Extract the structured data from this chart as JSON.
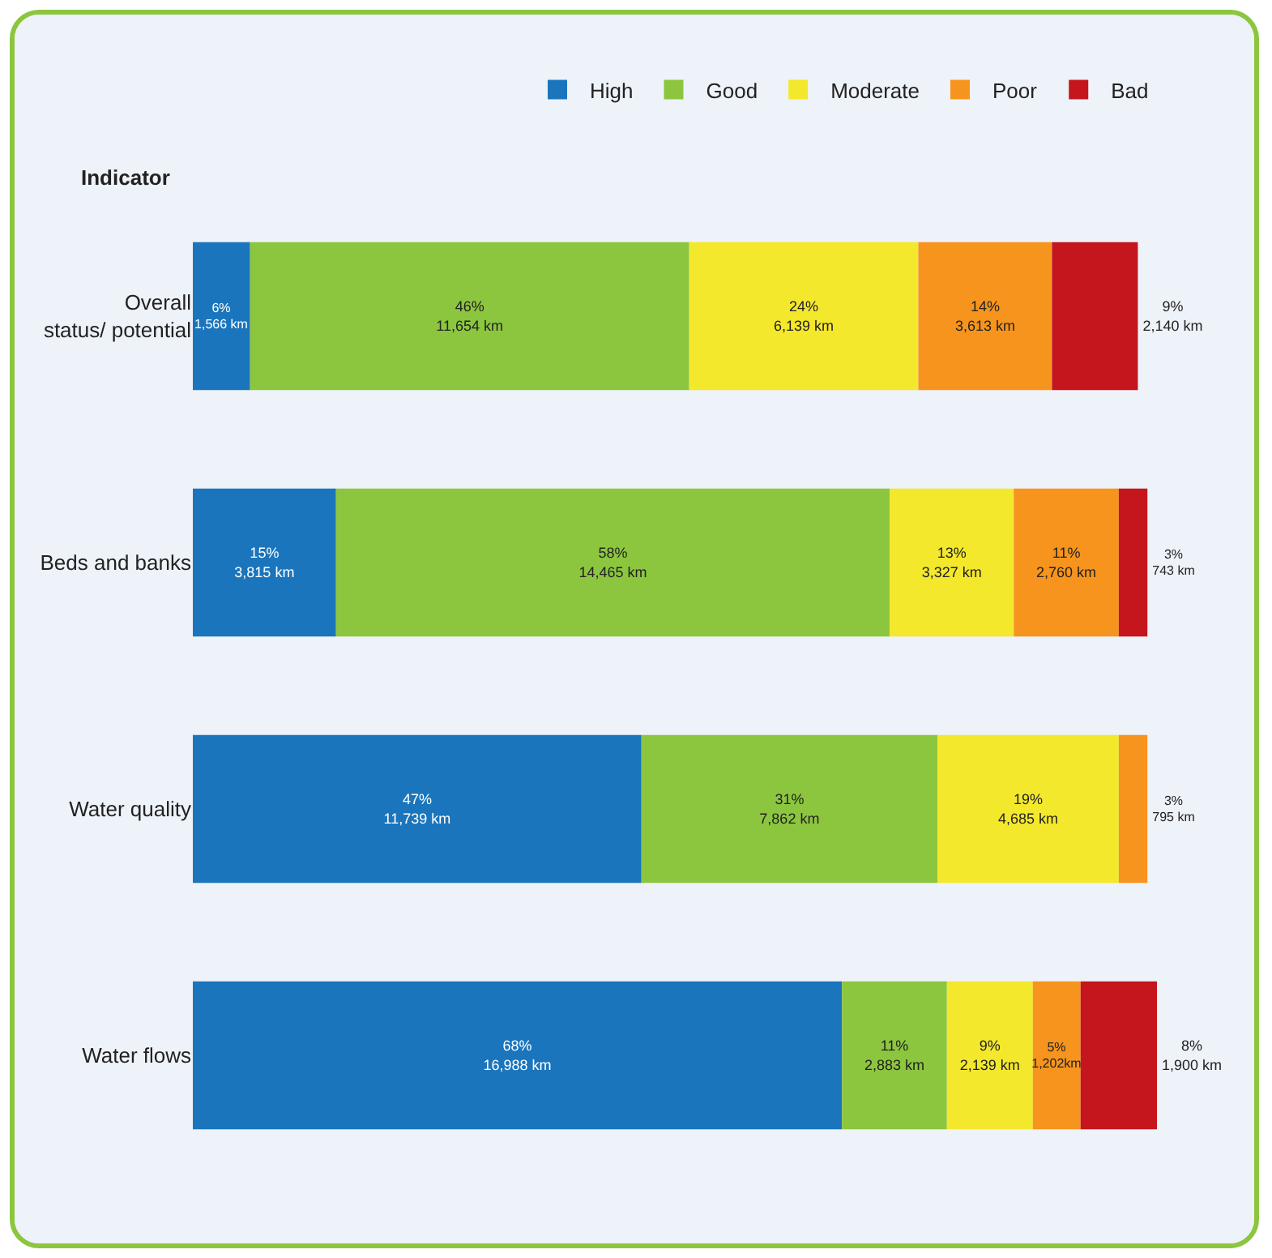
{
  "chart_data": {
    "type": "bar",
    "orientation": "horizontal",
    "stacked": true,
    "ylabel": "Indicator",
    "legend": "top",
    "categories": [
      "Overall status/ potential",
      "Beds and banks",
      "Water quality",
      "Water flows"
    ],
    "series": [
      {
        "name": "High",
        "color": "#1a75bc",
        "values": [
          6,
          15,
          47,
          68
        ],
        "value_labels": [
          "6%\n1,566 km",
          "15%\n3,815 km",
          "47%\n11,739 km",
          "68%\n16,988 km"
        ]
      },
      {
        "name": "Good",
        "color": "#8cc63f",
        "values": [
          46,
          58,
          31,
          11
        ],
        "value_labels": [
          "46%\n11,654 km",
          "58%\n14,465 km",
          "31%\n7,862 km",
          "11%\n2,883 km"
        ]
      },
      {
        "name": "Moderate",
        "color": "#f4e82c",
        "values": [
          24,
          13,
          19,
          9
        ],
        "value_labels": [
          "24%\n6,139 km",
          "13%\n3,327 km",
          "19%\n4,685 km",
          "9%\n2,139 km"
        ]
      },
      {
        "name": "Poor",
        "color": "#f7941d",
        "values": [
          14,
          11,
          3,
          5
        ],
        "value_labels": [
          "14%\n3,613 km",
          "11%\n2,760 km",
          "3%\n795 km",
          "5%\n1,202km"
        ]
      },
      {
        "name": "Bad",
        "color": "#c4161c",
        "values": [
          9,
          3,
          null,
          8
        ],
        "value_labels": [
          "9%\n2,140 km",
          "3%\n743 km",
          null,
          "8%\n1,900 km"
        ]
      }
    ]
  }
}
